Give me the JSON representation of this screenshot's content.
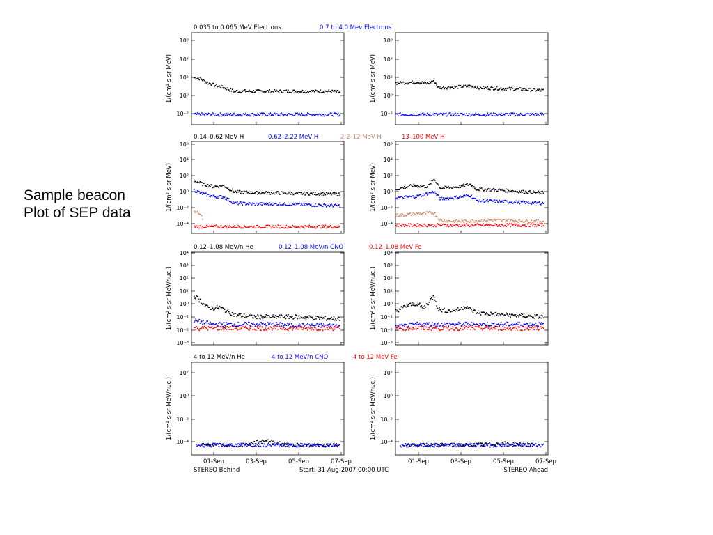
{
  "slide": {
    "caption_line1": "Sample beacon",
    "caption_line2": "Plot of SEP data"
  },
  "figure": {
    "footer_left": "STEREO Behind",
    "footer_center": "Start: 31-Aug-2007 00:00 UTC",
    "footer_right": "STEREO Ahead",
    "x_ticks": [
      "01-Sep",
      "03-Sep",
      "05-Sep",
      "07-Sep"
    ]
  },
  "colors": {
    "black": "#000000",
    "blue": "#0000ff",
    "tan": "#cc8866",
    "red": "#ff0000"
  },
  "chart_data": [
    {
      "type": "scatter",
      "panel": "electrons",
      "spacecraft": "STEREO Behind",
      "log_y": true,
      "ylabel": "1/(cm² s sr MeV)",
      "yticks": [
        "10⁶",
        "10⁴",
        "10²",
        "10⁰",
        "10⁻²"
      ],
      "ylim": [
        0.001,
        10000000
      ],
      "xlim_days": [
        0,
        7.2
      ],
      "series": [
        {
          "name": "0.035 to 0.065 MeV Electrons",
          "color": "#000000",
          "points": [
            [
              0.1,
              150
            ],
            [
              0.4,
              120
            ],
            [
              0.6,
              60
            ],
            [
              1.0,
              25
            ],
            [
              1.5,
              12
            ],
            [
              2.0,
              5
            ],
            [
              2.5,
              5
            ],
            [
              3.0,
              5
            ],
            [
              3.5,
              5
            ],
            [
              4.0,
              5
            ],
            [
              4.5,
              5
            ],
            [
              5.0,
              5
            ],
            [
              5.5,
              5
            ],
            [
              6.0,
              5
            ],
            [
              6.5,
              5
            ],
            [
              7.0,
              4
            ]
          ]
        },
        {
          "name": "0.7 to 4.0 Mev Electrons",
          "color": "#0000ff",
          "points": [
            [
              0.1,
              0.015
            ],
            [
              1.0,
              0.015
            ],
            [
              2.0,
              0.015
            ],
            [
              3.0,
              0.015
            ],
            [
              4.0,
              0.015
            ],
            [
              5.0,
              0.015
            ],
            [
              6.0,
              0.015
            ],
            [
              7.0,
              0.015
            ]
          ]
        }
      ]
    },
    {
      "type": "scatter",
      "panel": "electrons",
      "spacecraft": "STEREO Ahead",
      "log_y": true,
      "ylabel": "1/(cm² s sr MeV)",
      "yticks": [
        "10⁶",
        "10⁴",
        "10²",
        "10⁰",
        "10⁻²"
      ],
      "ylim": [
        0.001,
        10000000
      ],
      "xlim_days": [
        0,
        7.2
      ],
      "series": [
        {
          "name": "0.035 to 0.065 MeV Electrons",
          "color": "#000000",
          "points": [
            [
              0.0,
              40
            ],
            [
              1.0,
              50
            ],
            [
              1.5,
              35
            ],
            [
              1.8,
              80
            ],
            [
              2.0,
              12
            ],
            [
              3.0,
              15
            ],
            [
              3.5,
              18
            ],
            [
              4.0,
              12
            ],
            [
              5.0,
              10
            ],
            [
              6.0,
              8
            ],
            [
              7.0,
              6
            ]
          ]
        },
        {
          "name": "0.7 to 4.0 Mev Electrons",
          "color": "#0000ff",
          "points": [
            [
              0.0,
              0.015
            ],
            [
              2.0,
              0.015
            ],
            [
              4.0,
              0.015
            ],
            [
              6.0,
              0.015
            ],
            [
              7.0,
              0.015
            ]
          ]
        }
      ]
    },
    {
      "type": "scatter",
      "panel": "protons",
      "spacecraft": "STEREO Behind",
      "log_y": true,
      "ylabel": "1/(cm² s sr MeV)",
      "yticks": [
        "10⁶",
        "10⁴",
        "10²",
        "10⁰",
        "10⁻²",
        "10⁻⁴"
      ],
      "ylim": [
        3e-05,
        1000000
      ],
      "xlim_days": [
        0,
        7.2
      ],
      "series": [
        {
          "name": "0.14–0.62 MeV H",
          "color": "#000000",
          "points": [
            [
              0.1,
              40
            ],
            [
              0.5,
              15
            ],
            [
              1.0,
              8
            ],
            [
              1.5,
              10
            ],
            [
              2.0,
              2
            ],
            [
              3.0,
              1.5
            ],
            [
              4.0,
              1.5
            ],
            [
              5.0,
              1.3
            ],
            [
              6.0,
              1.2
            ],
            [
              7.0,
              1.0
            ]
          ]
        },
        {
          "name": "0.62–2.22 MeV H",
          "color": "#0000ff",
          "points": [
            [
              0.1,
              3
            ],
            [
              0.5,
              1.2
            ],
            [
              1.0,
              0.6
            ],
            [
              1.5,
              0.5
            ],
            [
              2.0,
              0.1
            ],
            [
              3.0,
              0.08
            ],
            [
              4.0,
              0.08
            ],
            [
              5.0,
              0.07
            ],
            [
              6.0,
              0.06
            ],
            [
              7.0,
              0.05
            ]
          ]
        },
        {
          "name": "2.2–12 MeV H",
          "color": "#cc8866",
          "points": [
            [
              0.1,
              0.01
            ],
            [
              0.3,
              0.008
            ],
            [
              0.5,
              0.002
            ]
          ]
        },
        {
          "name": "13–100 MeV H",
          "color": "#ff0000",
          "points": [
            [
              0.1,
              0.0002
            ],
            [
              1.0,
              0.0002
            ],
            [
              2.0,
              0.0002
            ],
            [
              3.0,
              0.0002
            ],
            [
              4.0,
              0.0002
            ],
            [
              5.0,
              0.0002
            ],
            [
              6.0,
              0.0002
            ],
            [
              7.0,
              0.0002
            ]
          ]
        }
      ]
    },
    {
      "type": "scatter",
      "panel": "protons",
      "spacecraft": "STEREO Ahead",
      "log_y": true,
      "ylabel": "1/(cm² s sr MeV)",
      "yticks": [
        "10⁶",
        "10⁴",
        "10²",
        "10⁰",
        "10⁻²",
        "10⁻⁴"
      ],
      "ylim": [
        3e-05,
        1000000
      ],
      "xlim_days": [
        0,
        7.2
      ],
      "series": [
        {
          "name": "0.14–0.62 MeV H",
          "color": "#000000",
          "points": [
            [
              0.0,
              4
            ],
            [
              0.8,
              10
            ],
            [
              1.5,
              8
            ],
            [
              1.8,
              60
            ],
            [
              2.1,
              5
            ],
            [
              3.0,
              8
            ],
            [
              3.5,
              15
            ],
            [
              3.8,
              4
            ],
            [
              5.0,
              3
            ],
            [
              6.0,
              2
            ],
            [
              7.0,
              1.5
            ]
          ]
        },
        {
          "name": "0.62–2.22 MeV H",
          "color": "#0000ff",
          "points": [
            [
              0.0,
              0.4
            ],
            [
              1.0,
              0.6
            ],
            [
              1.8,
              2
            ],
            [
              2.1,
              0.3
            ],
            [
              3.0,
              0.5
            ],
            [
              3.5,
              0.8
            ],
            [
              3.8,
              0.2
            ],
            [
              5.0,
              0.15
            ],
            [
              6.0,
              0.12
            ],
            [
              7.0,
              0.1
            ]
          ]
        },
        {
          "name": "2.2–12 MeV H",
          "color": "#cc8866",
          "points": [
            [
              0.0,
              0.004
            ],
            [
              1.0,
              0.006
            ],
            [
              1.8,
              0.008
            ],
            [
              2.1,
              0.001
            ],
            [
              3.0,
              0.0008
            ],
            [
              4.5,
              0.0012
            ],
            [
              5.5,
              0.001
            ],
            [
              7.0,
              0.0008
            ]
          ]
        },
        {
          "name": "13–100 MeV H",
          "color": "#ff0000",
          "points": [
            [
              0.0,
              0.0003
            ],
            [
              2.0,
              0.0003
            ],
            [
              4.0,
              0.0003
            ],
            [
              6.0,
              0.0003
            ],
            [
              7.0,
              0.0003
            ]
          ]
        }
      ]
    },
    {
      "type": "scatter",
      "panel": "heavy ions 0.12–1.08",
      "spacecraft": "STEREO Behind",
      "log_y": true,
      "ylabel": "1/(cm² s sr MeV/nuc.)",
      "yticks": [
        "10⁴",
        "10³",
        "10²",
        "10¹",
        "10⁰",
        "10⁻¹",
        "10⁻²",
        "10⁻³"
      ],
      "ylim": [
        0.0005,
        15000
      ],
      "xlim_days": [
        0,
        7.2
      ],
      "series": [
        {
          "name": "0.12–1.08 MeV/n He",
          "color": "#000000",
          "points": [
            [
              0.1,
              5
            ],
            [
              0.4,
              2
            ],
            [
              0.7,
              0.6
            ],
            [
              1.0,
              0.5
            ],
            [
              1.3,
              0.6
            ],
            [
              1.5,
              0.4
            ],
            [
              2.0,
              0.15
            ],
            [
              2.5,
              0.12
            ],
            [
              3.0,
              0.1
            ],
            [
              4.0,
              0.1
            ],
            [
              5.0,
              0.1
            ],
            [
              6.0,
              0.08
            ],
            [
              7.0,
              0.07
            ]
          ]
        },
        {
          "name": "0.12–1.08 MeV/n CNO",
          "color": "#0000ff",
          "points": [
            [
              0.1,
              0.05
            ],
            [
              1.0,
              0.025
            ],
            [
              2.0,
              0.025
            ],
            [
              3.0,
              0.025
            ],
            [
              4.0,
              0.025
            ],
            [
              5.0,
              0.02
            ],
            [
              6.0,
              0.02
            ],
            [
              7.0,
              0.02
            ]
          ]
        },
        {
          "name": "0.12–1.08 MeV Fe",
          "color": "#ff0000",
          "points": [
            [
              0.1,
              0.012
            ],
            [
              2.0,
              0.012
            ],
            [
              4.0,
              0.012
            ],
            [
              6.0,
              0.012
            ],
            [
              7.0,
              0.012
            ]
          ]
        }
      ]
    },
    {
      "type": "scatter",
      "panel": "heavy ions 0.12–1.08",
      "spacecraft": "STEREO Ahead",
      "log_y": true,
      "ylabel": "1/(cm² s sr MeV/nuc.)",
      "yticks": [
        "10⁴",
        "10³",
        "10²",
        "10¹",
        "10⁰",
        "10⁻¹",
        "10⁻²",
        "10⁻³"
      ],
      "ylim": [
        0.0005,
        15000
      ],
      "xlim_days": [
        0,
        7.2
      ],
      "series": [
        {
          "name": "0.12–1.08 MeV/n He",
          "color": "#000000",
          "points": [
            [
              0.0,
              0.3
            ],
            [
              0.5,
              0.8
            ],
            [
              1.0,
              1.2
            ],
            [
              1.3,
              0.5
            ],
            [
              1.8,
              5
            ],
            [
              2.0,
              0.4
            ],
            [
              2.5,
              0.3
            ],
            [
              3.0,
              0.4
            ],
            [
              3.3,
              0.8
            ],
            [
              3.6,
              0.3
            ],
            [
              4.0,
              0.2
            ],
            [
              5.0,
              0.15
            ],
            [
              6.0,
              0.12
            ],
            [
              7.0,
              0.1
            ]
          ]
        },
        {
          "name": "0.12–1.08 MeV/n CNO",
          "color": "#0000ff",
          "points": [
            [
              0.0,
              0.015
            ],
            [
              1.0,
              0.025
            ],
            [
              2.0,
              0.025
            ],
            [
              4.0,
              0.025
            ],
            [
              6.0,
              0.025
            ],
            [
              7.0,
              0.025
            ]
          ]
        },
        {
          "name": "0.12–1.08 MeV Fe",
          "color": "#ff0000",
          "points": [
            [
              0.0,
              0.012
            ],
            [
              3.0,
              0.012
            ],
            [
              5.0,
              0.012
            ],
            [
              7.0,
              0.012
            ]
          ]
        }
      ]
    },
    {
      "type": "scatter",
      "panel": "heavy ions 4–12",
      "spacecraft": "STEREO Behind",
      "log_y": true,
      "ylabel": "1/(cm² s sr MeV/nuc.)",
      "yticks": [
        "10²",
        "10⁰",
        "10⁻²",
        "10⁻⁴"
      ],
      "ylim": [
        1e-05,
        10000
      ],
      "xlim_days": [
        0,
        7.2
      ],
      "series": [
        {
          "name": "4 to 12 MeV/n He",
          "color": "#000000",
          "points": [
            [
              0.5,
              0.0001
            ],
            [
              1.5,
              0.0001
            ],
            [
              2.5,
              0.0001
            ],
            [
              3.4,
              0.0003
            ],
            [
              4.5,
              0.0001
            ],
            [
              6.0,
              0.0001
            ],
            [
              6.9,
              0.0001
            ]
          ]
        },
        {
          "name": "4 to 12 MeV/n CNO",
          "color": "#0000ff",
          "points": [
            [
              0.2,
              0.0001
            ],
            [
              2.0,
              0.0001
            ],
            [
              4.0,
              0.0001
            ],
            [
              6.0,
              0.0001
            ],
            [
              7.0,
              0.0001
            ]
          ]
        },
        {
          "name": "4 to 12 MeV Fe",
          "color": "#ff0000",
          "points": []
        }
      ]
    },
    {
      "type": "scatter",
      "panel": "heavy ions 4–12",
      "spacecraft": "STEREO Ahead",
      "log_y": true,
      "ylabel": "1/(cm² s sr MeV/nuc.)",
      "yticks": [
        "10²",
        "10⁰",
        "10⁻²",
        "10⁻⁴"
      ],
      "ylim": [
        1e-05,
        10000
      ],
      "xlim_days": [
        0,
        7.2
      ],
      "series": [
        {
          "name": "4 to 12 MeV/n He",
          "color": "#000000",
          "points": [
            [
              0.5,
              0.0001
            ],
            [
              2.0,
              0.0001
            ],
            [
              3.5,
              0.0001
            ],
            [
              5.0,
              0.00015
            ],
            [
              6.5,
              0.0001
            ]
          ]
        },
        {
          "name": "4 to 12 MeV/n CNO",
          "color": "#0000ff",
          "points": [
            [
              0.2,
              0.0001
            ],
            [
              2.0,
              0.0001
            ],
            [
              4.0,
              0.0001
            ],
            [
              6.0,
              0.0001
            ],
            [
              7.0,
              0.0001
            ]
          ]
        },
        {
          "name": "4 to 12 MeV Fe",
          "color": "#ff0000",
          "points": []
        }
      ]
    }
  ]
}
